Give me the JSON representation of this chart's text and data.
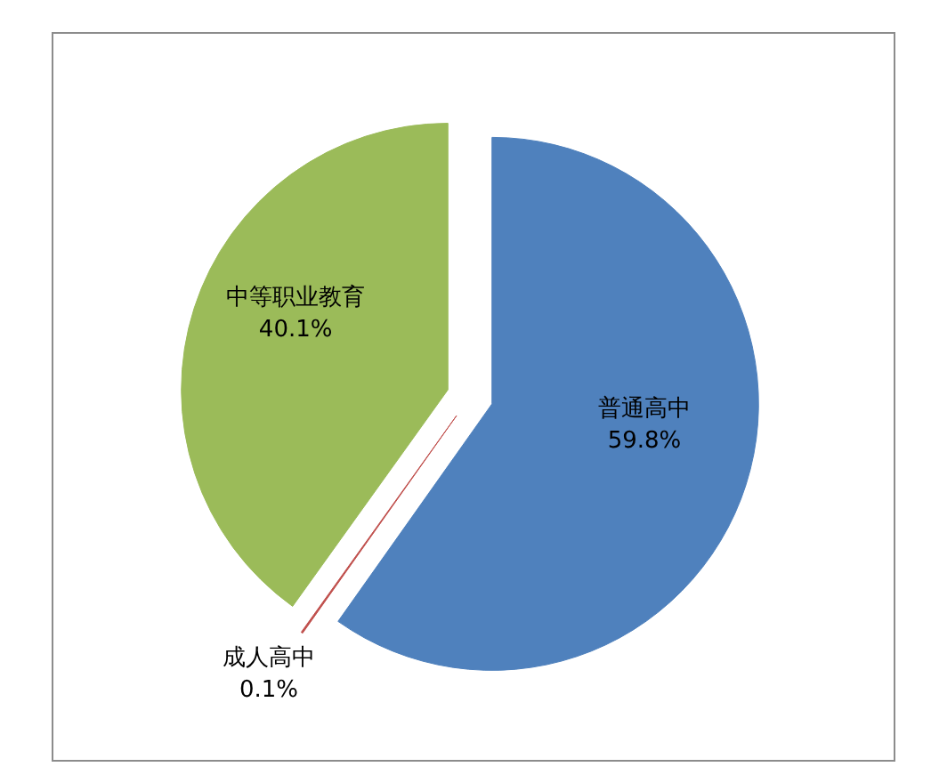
{
  "chart_data": {
    "type": "pie",
    "categories": [
      "普通高中",
      "成人高中",
      "中等职业教育"
    ],
    "values": [
      59.8,
      0.1,
      40.1
    ],
    "colors": [
      "#4f81bd",
      "#c0504d",
      "#9bbb59"
    ],
    "value_labels": [
      "59.8%",
      "0.1%",
      "40.1%"
    ],
    "legend": false
  }
}
